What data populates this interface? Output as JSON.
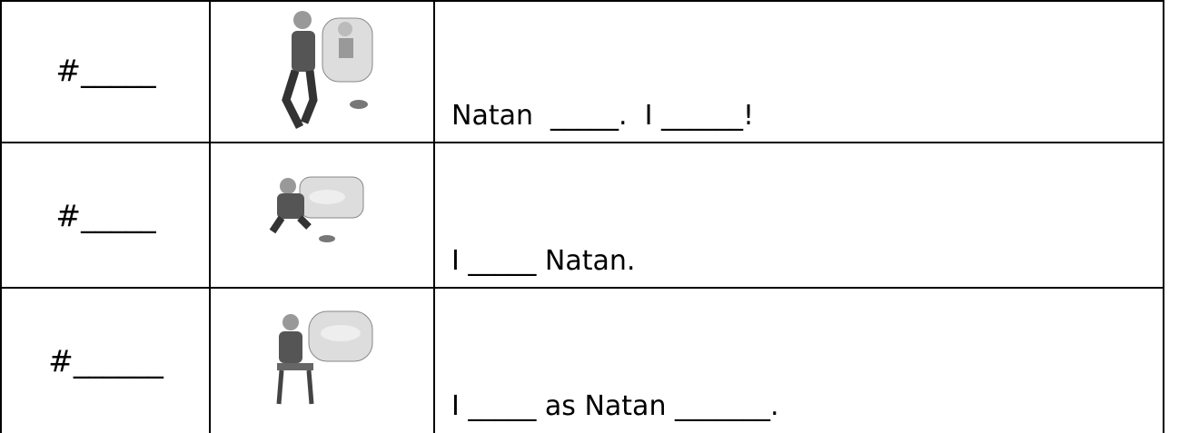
{
  "table": {
    "rows": [
      {
        "label": "#_____",
        "sentence": "Natan  _____.  I ______!"
      },
      {
        "label": "#_____",
        "sentence": "I _____ Natan."
      },
      {
        "label": "#______",
        "sentence": "I _____ as Natan _______."
      }
    ]
  }
}
